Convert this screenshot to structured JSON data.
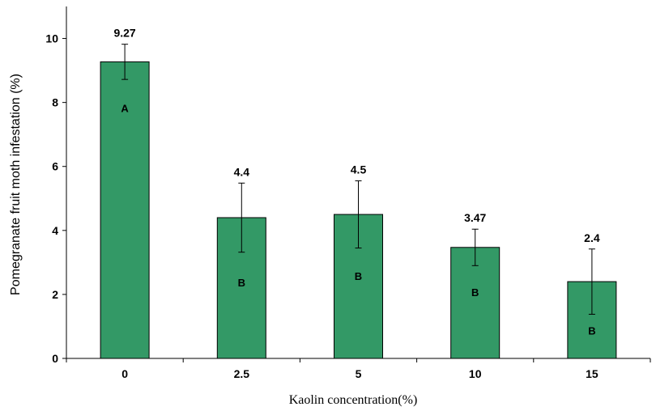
{
  "chart_data": {
    "type": "bar",
    "categories": [
      "0",
      "2.5",
      "5",
      "10",
      "15"
    ],
    "values": [
      9.27,
      4.4,
      4.5,
      3.47,
      2.4
    ],
    "value_labels": [
      "9.27",
      "4.4",
      "4.5",
      "3.47",
      "2.4"
    ],
    "error_low": [
      8.72,
      3.32,
      3.45,
      2.9,
      1.38
    ],
    "error_high": [
      9.82,
      5.48,
      5.55,
      4.04,
      3.42
    ],
    "group_letters": [
      "A",
      "B",
      "B",
      "B",
      "B"
    ],
    "group_letter_y": [
      7.7,
      2.25,
      2.45,
      1.95,
      0.75
    ],
    "xlabel": "Kaolin concentration(%)",
    "ylabel": "Pomegranate fruit moth infestation (%)",
    "ylim": [
      0,
      11
    ],
    "yticks": [
      "0",
      "2",
      "4",
      "6",
      "8",
      "10"
    ],
    "bar_color": "#339966",
    "grid": false,
    "legend": "none"
  }
}
